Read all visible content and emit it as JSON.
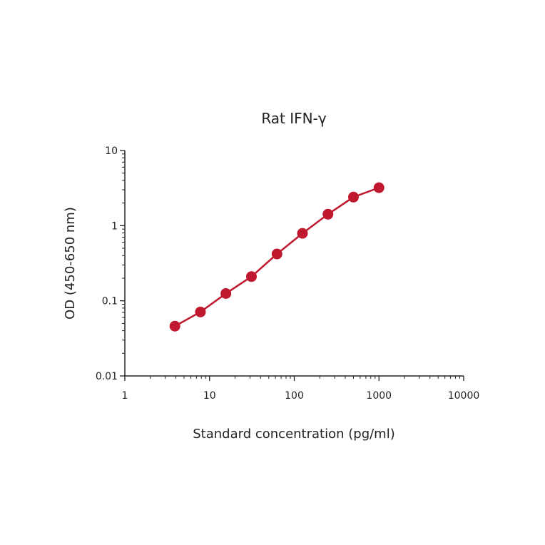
{
  "chart_data": {
    "type": "line",
    "title": "Rat IFN-γ",
    "xlabel": "Standard concentration (pg/ml)",
    "ylabel": "OD (450-650 nm)",
    "xscale": "log",
    "yscale": "log",
    "xlim": [
      1,
      10000
    ],
    "ylim": [
      0.01,
      10
    ],
    "xticks": [
      "1",
      "10",
      "100",
      "1000",
      "10000"
    ],
    "yticks": [
      "0.01",
      "0.1",
      "1",
      "10"
    ],
    "grid": false,
    "series": [
      {
        "name": "Rat IFN-γ",
        "color": "#c0182e",
        "x": [
          3.9,
          7.8,
          15.6,
          31.25,
          62.5,
          125,
          250,
          500,
          1000
        ],
        "y": [
          0.046,
          0.071,
          0.125,
          0.21,
          0.42,
          0.79,
          1.42,
          2.4,
          3.2
        ]
      }
    ]
  }
}
